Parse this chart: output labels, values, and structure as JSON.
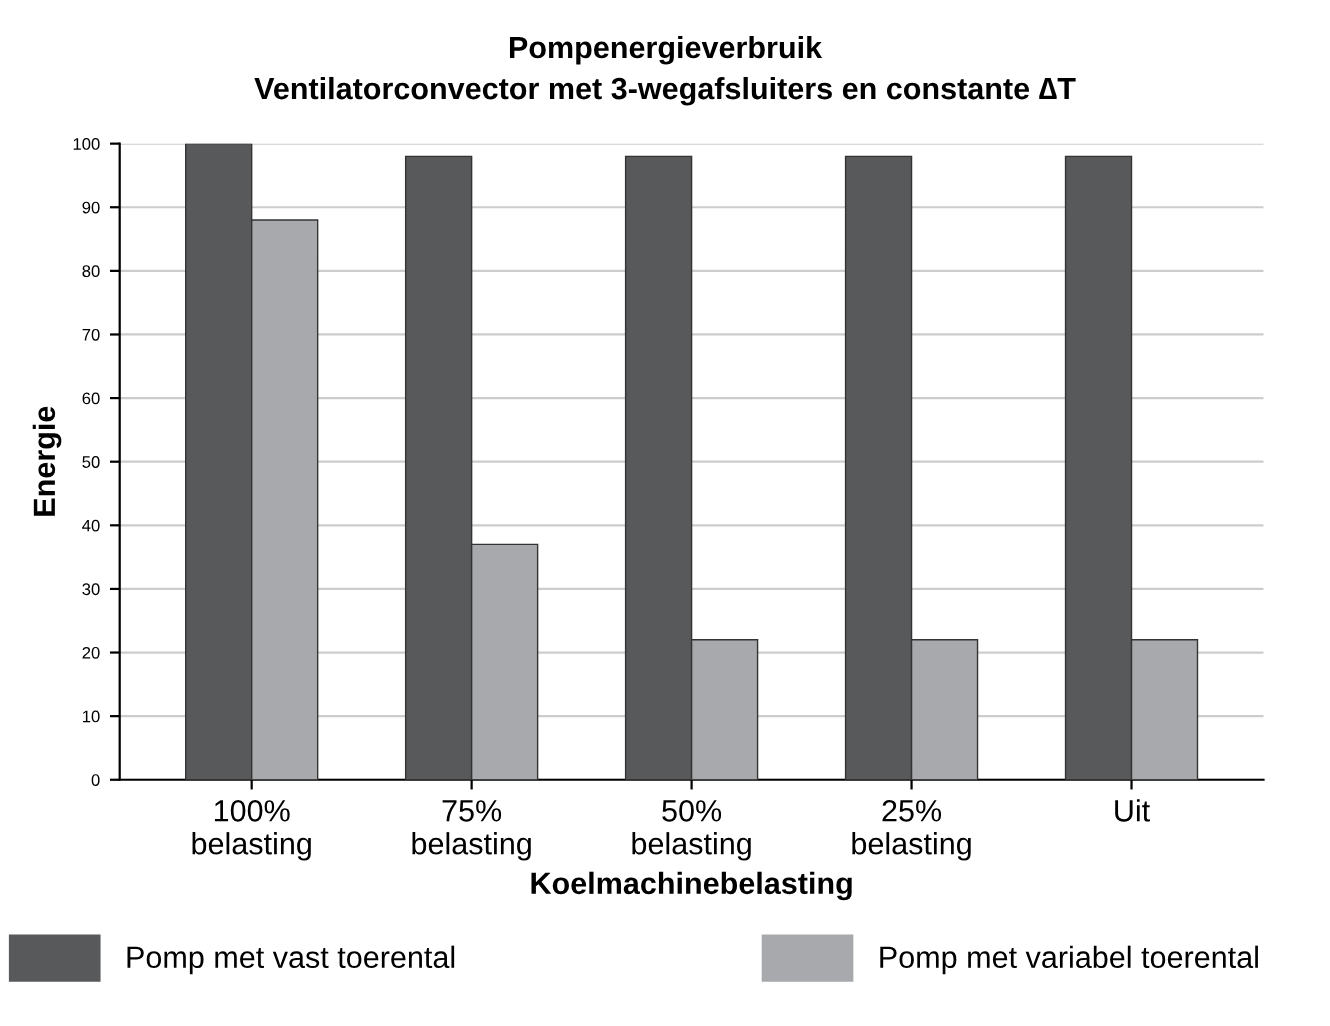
{
  "chart_data": {
    "type": "bar",
    "title": "Pompenergieverbruik",
    "subtitle": "Ventilatorconvector met 3-wegafsluiters en constante ∆T",
    "xlabel": "Koelmachinebelasting",
    "ylabel": "Energie",
    "categories": [
      "100%\nbelasting",
      "75%\nbelasting",
      "50%\nbelasting",
      "25%\nbelasting",
      "Uit"
    ],
    "series": [
      {
        "name": "Pomp met vast toerental",
        "color": "#58595b",
        "values": [
          100,
          98,
          98,
          98,
          98
        ]
      },
      {
        "name": "Pomp met variabel toerental",
        "color": "#a7a9ac",
        "values": [
          88,
          37,
          22,
          22,
          22
        ]
      }
    ],
    "ylim": [
      0,
      100
    ],
    "yticks": [
      0,
      10,
      20,
      30,
      40,
      50,
      60,
      70,
      80,
      90,
      100
    ],
    "grid": "y",
    "legend": "bottom"
  }
}
